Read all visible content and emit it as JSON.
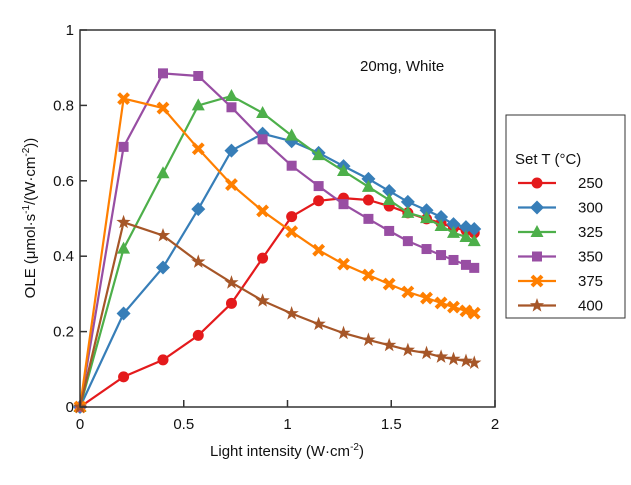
{
  "chart_data": {
    "type": "line",
    "annotation": "20mg,  White",
    "xlabel": "Light intensity (W·cm",
    "xlabel_sup": "-2",
    "xlabel_end": ")",
    "ylabel": "OLE (μmol·s",
    "ylabel_sup1": "-1",
    "ylabel_mid": "/(W·cm",
    "ylabel_sup2": "-2",
    "ylabel_end": "))",
    "xlim": [
      0,
      2
    ],
    "ylim": [
      0,
      1
    ],
    "xticks": [
      0,
      0.5,
      1,
      1.5,
      2
    ],
    "xtick_labels": [
      "0",
      "0.5",
      "1",
      "1.5",
      "2"
    ],
    "yticks": [
      0,
      0.2,
      0.4,
      0.6,
      0.8,
      1
    ],
    "ytick_labels": [
      "0",
      "0.2",
      "0.4",
      "0.6",
      "0.8",
      "1"
    ],
    "grid": false,
    "legend_title": "Set T (°C)",
    "legend_placement": "right-outside",
    "x": [
      0,
      0.21,
      0.4,
      0.57,
      0.73,
      0.88,
      1.02,
      1.15,
      1.27,
      1.39,
      1.49,
      1.58,
      1.67,
      1.74,
      1.8,
      1.86,
      1.9
    ],
    "series": [
      {
        "name": "250",
        "color": "#e41a1c",
        "marker": "circle",
        "values": [
          0,
          0.08,
          0.125,
          0.19,
          0.275,
          0.395,
          0.505,
          0.547,
          0.554,
          0.549,
          0.533,
          0.515,
          0.499,
          0.488,
          0.475,
          0.469,
          0.462
        ]
      },
      {
        "name": "300",
        "color": "#377eb8",
        "marker": "diamond",
        "values": [
          0,
          0.248,
          0.37,
          0.525,
          0.68,
          0.725,
          0.705,
          0.674,
          0.639,
          0.605,
          0.573,
          0.544,
          0.522,
          0.504,
          0.485,
          0.477,
          0.472
        ]
      },
      {
        "name": "325",
        "color": "#4daf4a",
        "marker": "triangle",
        "values": [
          0,
          0.42,
          0.62,
          0.8,
          0.825,
          0.78,
          0.72,
          0.668,
          0.626,
          0.584,
          0.549,
          0.515,
          0.501,
          0.48,
          0.462,
          0.451,
          0.44
        ]
      },
      {
        "name": "350",
        "color": "#984ea3",
        "marker": "square",
        "values": [
          0,
          0.69,
          0.885,
          0.878,
          0.795,
          0.71,
          0.64,
          0.586,
          0.538,
          0.499,
          0.467,
          0.44,
          0.419,
          0.403,
          0.39,
          0.377,
          0.369
        ]
      },
      {
        "name": "375",
        "color": "#ff7f00",
        "marker": "x",
        "values": [
          0,
          0.818,
          0.793,
          0.685,
          0.59,
          0.52,
          0.465,
          0.416,
          0.379,
          0.35,
          0.326,
          0.305,
          0.289,
          0.276,
          0.265,
          0.255,
          0.249
        ]
      },
      {
        "name": "400",
        "color": "#a65628",
        "marker": "star",
        "values": [
          0,
          0.49,
          0.455,
          0.385,
          0.33,
          0.282,
          0.248,
          0.22,
          0.196,
          0.178,
          0.164,
          0.151,
          0.143,
          0.133,
          0.127,
          0.122,
          0.117
        ]
      }
    ]
  }
}
